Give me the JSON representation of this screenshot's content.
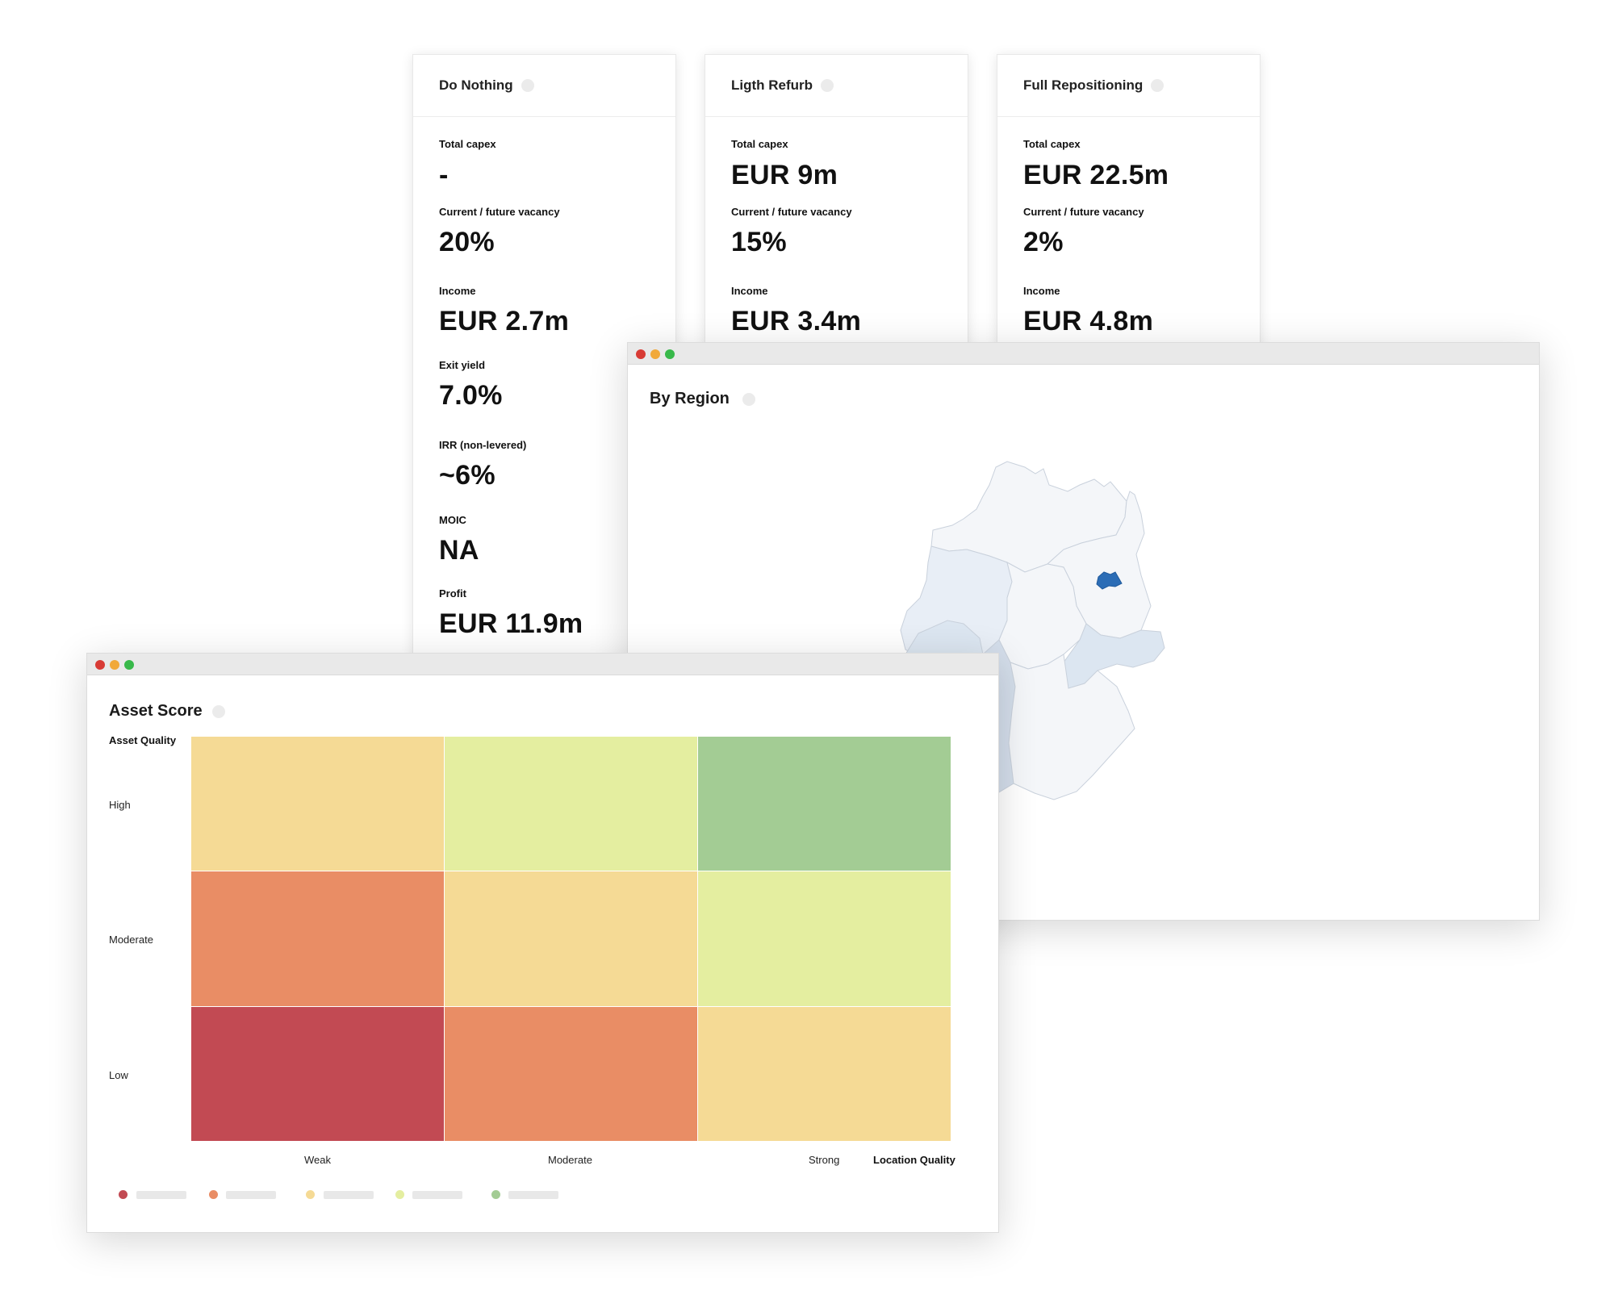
{
  "scenarios": [
    {
      "title": "Do Nothing",
      "metrics": [
        {
          "label": "Total capex",
          "value": "-"
        },
        {
          "label": "Current / future vacancy",
          "value": "20%"
        },
        {
          "label": "Income",
          "value": "EUR 2.7m"
        },
        {
          "label": "Exit yield",
          "value": "7.0%"
        },
        {
          "label": "IRR (non-levered)",
          "value": "~6%"
        },
        {
          "label": "MOIC",
          "value": "NA"
        },
        {
          "label": "Profit",
          "value": "EUR 11.9m"
        }
      ]
    },
    {
      "title": "Ligth Refurb",
      "metrics": [
        {
          "label": "Total capex",
          "value": "EUR 9m"
        },
        {
          "label": "Current / future vacancy",
          "value": "15%"
        },
        {
          "label": "Income",
          "value": "EUR 3.4m"
        }
      ]
    },
    {
      "title": "Full Repositioning",
      "metrics": [
        {
          "label": "Total capex",
          "value": "EUR 22.5m"
        },
        {
          "label": "Current / future vacancy",
          "value": "2%"
        },
        {
          "label": "Income",
          "value": "EUR 4.8m"
        }
      ]
    }
  ],
  "region_window": {
    "title": "By Region",
    "highlight_color": "#2c6db6",
    "shade_color": "#dce6f1",
    "base_color": "#f4f6f9"
  },
  "asset_window": {
    "title": "Asset Score",
    "y_axis_title": "Asset Quality",
    "x_axis_title": "Location Quality",
    "y_labels": [
      "High",
      "Moderate",
      "Low"
    ],
    "x_labels": [
      "Weak",
      "Moderate",
      "Strong"
    ],
    "grid_colors": [
      [
        "#f5da95",
        "#e4eea0",
        "#a3cc94"
      ],
      [
        "#e98d65",
        "#f5da95",
        "#e4eea0"
      ],
      [
        "#c24a53",
        "#e98d65",
        "#f5da95"
      ]
    ],
    "legend_colors": [
      "#c24a53",
      "#e98d65",
      "#f5da95",
      "#e4eea0",
      "#a3cc94"
    ]
  },
  "window_controls": {
    "close": "#d83b35",
    "minimize": "#f1a93a",
    "maximize": "#38b94a"
  }
}
